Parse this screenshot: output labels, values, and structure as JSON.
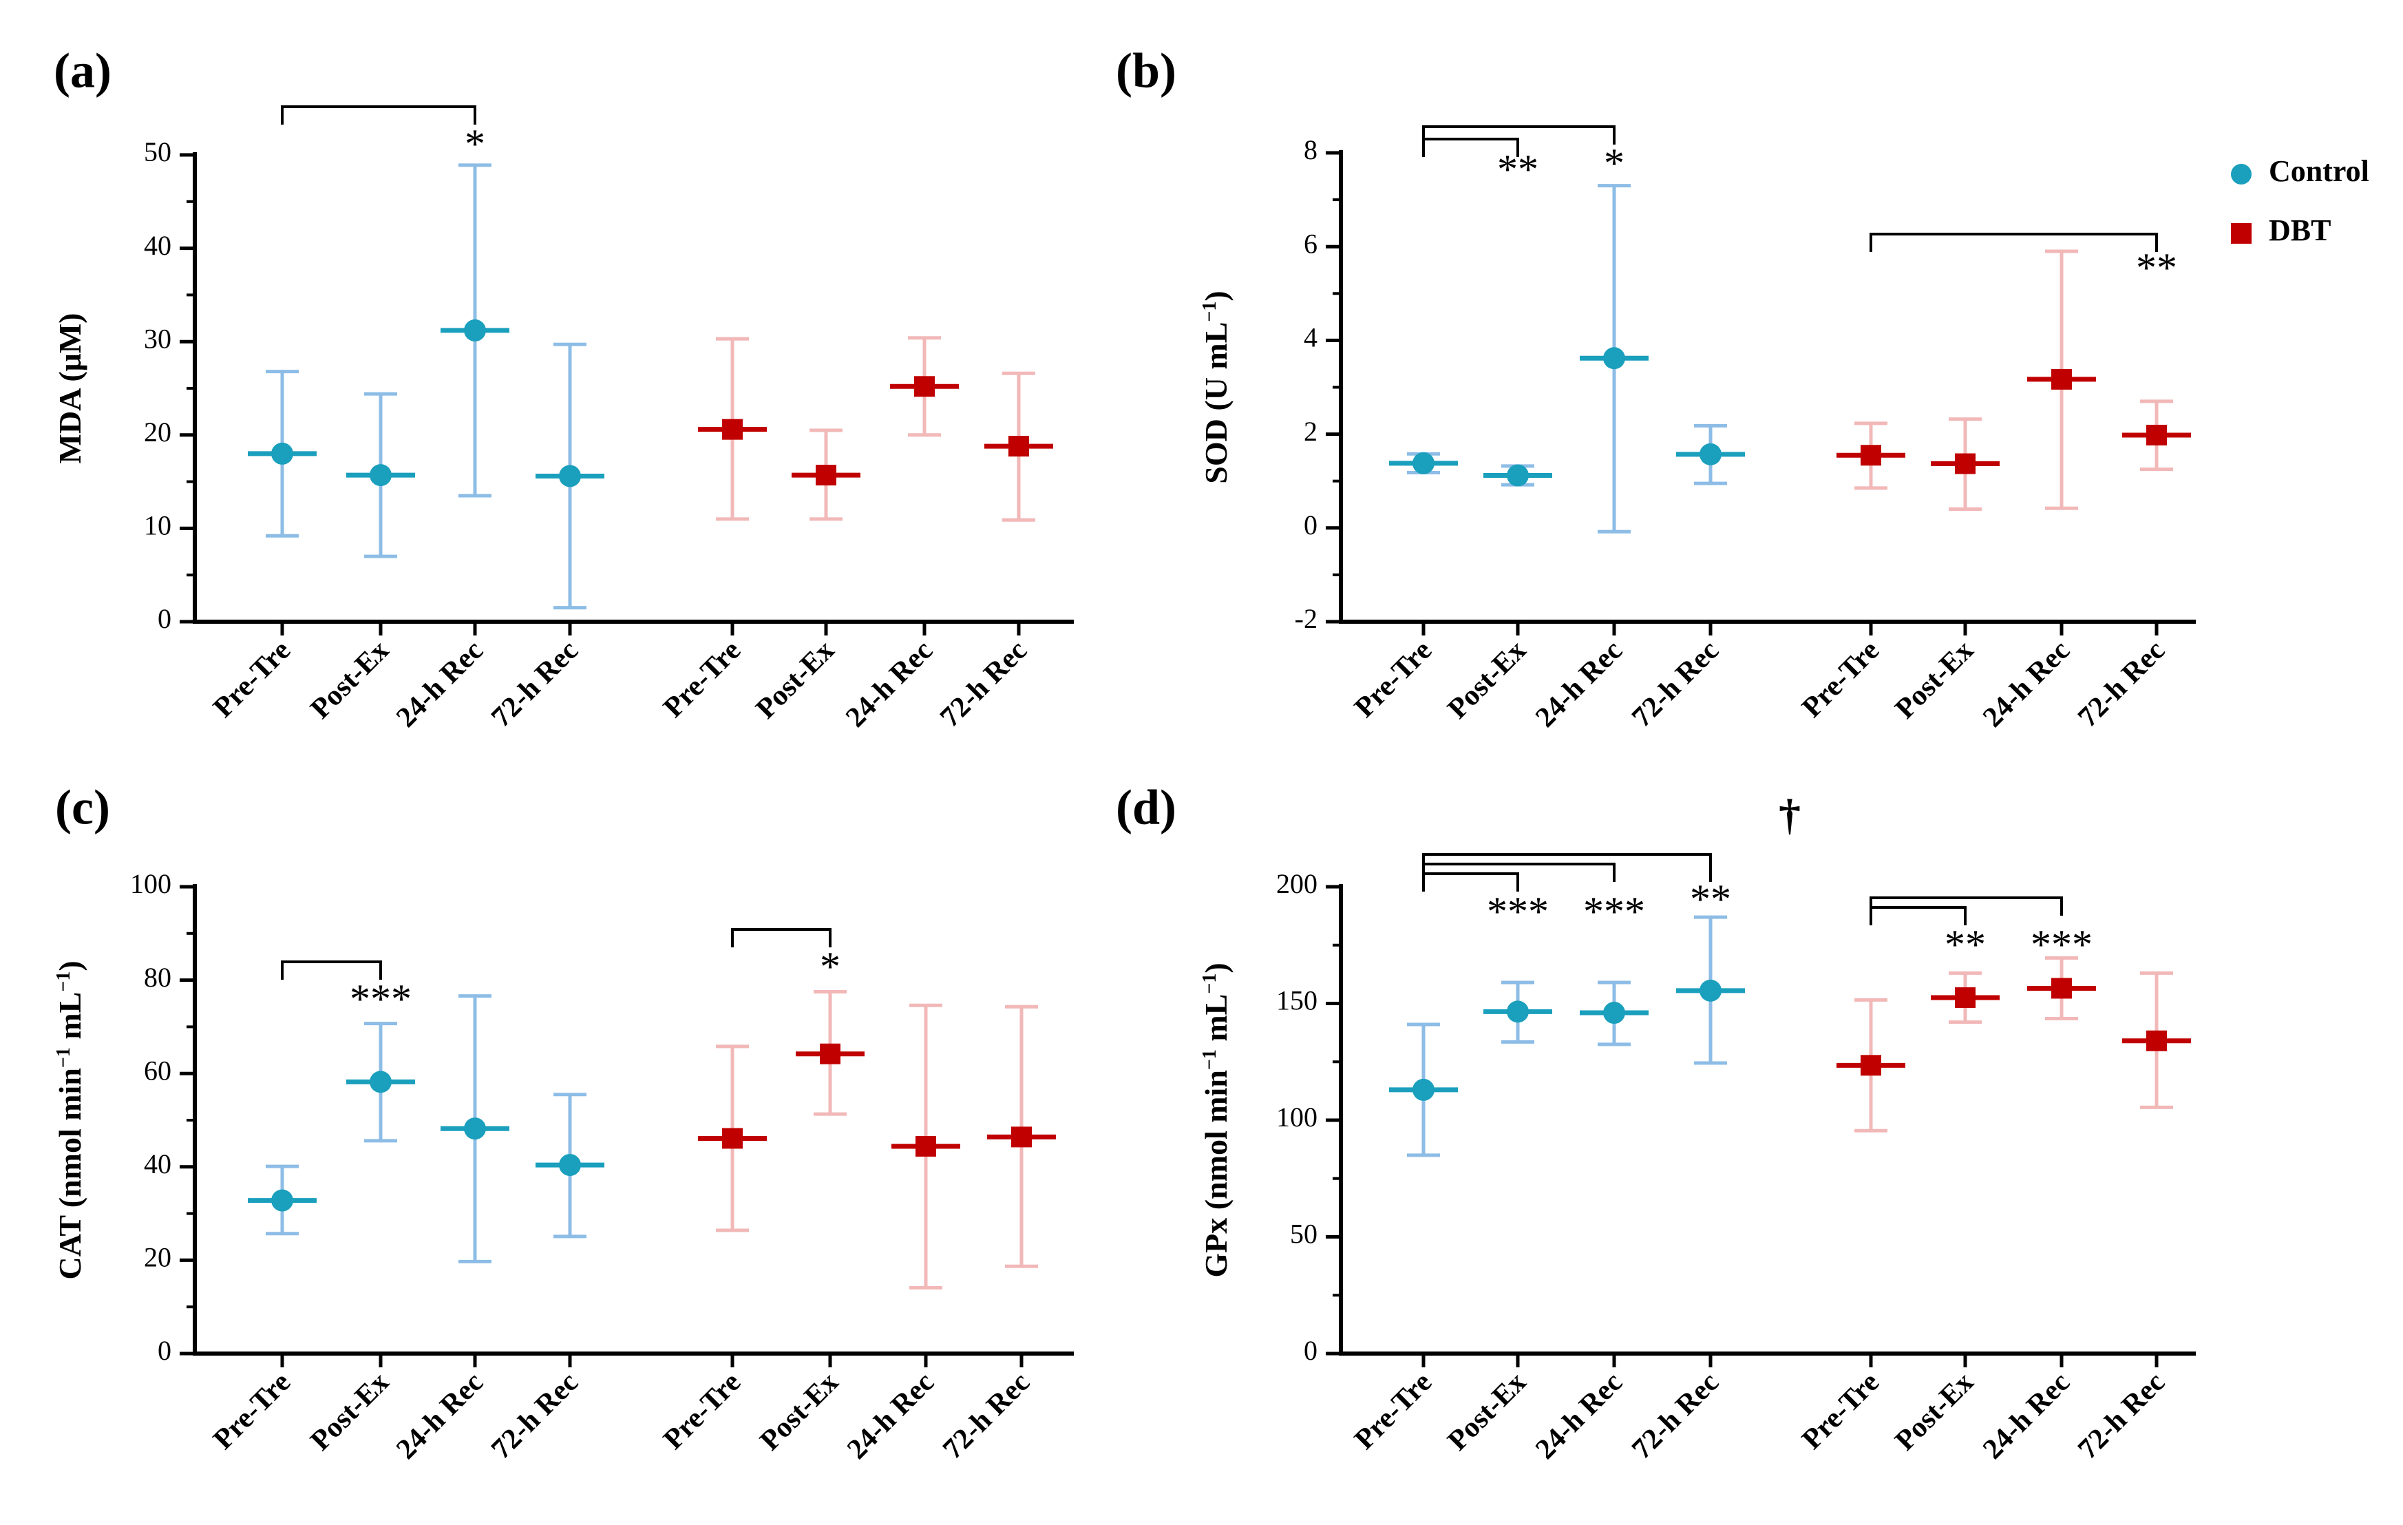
{
  "chart_data": [
    {
      "panel_label": "(a)",
      "type": "scatter",
      "ylabel_main": "MDA (",
      "ylabel_unit": "μM)",
      "ylim": [
        0,
        50
      ],
      "yticks": [
        "0",
        "10",
        "20",
        "30",
        "40",
        "50"
      ],
      "categories": [
        "Pre-Tre",
        "Post-Ex",
        "24-h Rec",
        "72-h Rec",
        "Pre-Tre",
        "Post-Ex",
        "24-h Rec",
        "72-h Rec"
      ],
      "series": [
        {
          "name": "Control",
          "mean": [
            18.0,
            15.7,
            31.2,
            15.6
          ],
          "lower": [
            9.2,
            7.0,
            13.5,
            1.5
          ],
          "upper": [
            26.8,
            24.4,
            48.9,
            29.7
          ]
        },
        {
          "name": "DBT",
          "mean": [
            20.6,
            15.7,
            25.2,
            18.8
          ],
          "lower": [
            11.0,
            11.0,
            20.0,
            10.9
          ],
          "upper": [
            30.3,
            20.5,
            30.4,
            26.6
          ]
        }
      ],
      "significance": [
        {
          "text": "*",
          "group": 0,
          "from": 0,
          "to": 2,
          "level": 0
        }
      ],
      "legend": false
    },
    {
      "panel_label": "(b)",
      "type": "scatter",
      "ylabel_main": "SOD (U mL",
      "ylabel_sup": "−1",
      "ylabel_end": ")",
      "ylim": [
        -2,
        8
      ],
      "yticks": [
        "-2",
        "0",
        "2",
        "4",
        "6",
        "8"
      ],
      "categories": [
        "Pre-Tre",
        "Post-Ex",
        "24-h Rec",
        "72-h Rec",
        "Pre-Tre",
        "Post-Ex",
        "24-h Rec",
        "72-h Rec"
      ],
      "series": [
        {
          "name": "Control",
          "mean": [
            1.38,
            1.12,
            3.62,
            1.57
          ],
          "lower": [
            1.18,
            0.92,
            -0.08,
            0.95
          ],
          "upper": [
            1.58,
            1.32,
            7.3,
            2.18
          ]
        },
        {
          "name": "DBT",
          "mean": [
            1.55,
            1.37,
            3.17,
            1.98
          ],
          "lower": [
            0.85,
            0.4,
            0.42,
            1.25
          ],
          "upper": [
            2.23,
            2.32,
            5.9,
            2.7
          ]
        }
      ],
      "significance": [
        {
          "text": "**",
          "group": 0,
          "from": 0,
          "to": 1,
          "level": 0
        },
        {
          "text": "*",
          "group": 0,
          "from": 0,
          "to": 2,
          "level": 1
        },
        {
          "text": "**",
          "group": 1,
          "from": 0,
          "to": 3,
          "level": 0
        }
      ],
      "legend": true
    },
    {
      "panel_label": "(c)",
      "type": "scatter",
      "ylabel_main": "CAT (nmol min",
      "ylabel_sup": "−1",
      "ylabel_mid": " mL",
      "ylabel_sup2": "−1",
      "ylabel_end": ")",
      "ylim": [
        0,
        100
      ],
      "yticks": [
        "0",
        "20",
        "40",
        "60",
        "80",
        "100"
      ],
      "categories": [
        "Pre-Tre",
        "Post-Ex",
        "24-h Rec",
        "72-h Rec",
        "Pre-Tre",
        "Post-Ex",
        "24-h Rec",
        "72-h Rec"
      ],
      "series": [
        {
          "name": "Control",
          "mean": [
            32.8,
            58.2,
            48.2,
            40.4
          ],
          "lower": [
            25.7,
            45.6,
            19.7,
            25.1
          ],
          "upper": [
            40.1,
            70.7,
            76.6,
            55.5
          ]
        },
        {
          "name": "DBT",
          "mean": [
            46.1,
            64.2,
            44.4,
            46.4
          ],
          "lower": [
            26.4,
            51.3,
            14.1,
            18.7
          ],
          "upper": [
            65.8,
            77.5,
            74.6,
            74.3
          ]
        }
      ],
      "significance": [
        {
          "text": "***",
          "group": 0,
          "from": 0,
          "to": 1,
          "level": 0
        },
        {
          "text": "*",
          "group": 1,
          "from": 0,
          "to": 1,
          "level": 0
        }
      ],
      "legend": false
    },
    {
      "panel_label": "(d)",
      "type": "scatter",
      "ylabel_main": "GPx (nmol min",
      "ylabel_sup": "−1",
      "ylabel_mid": " mL",
      "ylabel_sup2": "−1",
      "ylabel_end": ")",
      "ylim": [
        0,
        200
      ],
      "yticks": [
        "0",
        "50",
        "100",
        "150",
        "200"
      ],
      "categories": [
        "Pre-Tre",
        "Post-Ex",
        "24-h Rec",
        "72-h Rec",
        "Pre-Tre",
        "Post-Ex",
        "24-h Rec",
        "72-h Rec"
      ],
      "series": [
        {
          "name": "Control",
          "mean": [
            113,
            146.5,
            146,
            155.5
          ],
          "lower": [
            85,
            133.5,
            132.5,
            124.5
          ],
          "upper": [
            141,
            159,
            159,
            187
          ]
        },
        {
          "name": "DBT",
          "mean": [
            123.5,
            152.5,
            156.5,
            134
          ],
          "lower": [
            95.5,
            142,
            143.5,
            105.5
          ],
          "upper": [
            151.5,
            163,
            169.5,
            163
          ]
        }
      ],
      "significance": [
        {
          "text": "***",
          "group": 0,
          "from": 0,
          "to": 1,
          "level": 0
        },
        {
          "text": "***",
          "group": 0,
          "from": 0,
          "to": 2,
          "level": 1
        },
        {
          "text": "**",
          "group": 0,
          "from": 0,
          "to": 3,
          "level": 2
        },
        {
          "text": "**",
          "group": 1,
          "from": 0,
          "to": 1,
          "level": 0
        },
        {
          "text": "***",
          "group": 1,
          "from": 0,
          "to": 2,
          "level": 1
        }
      ],
      "dagger": "†",
      "legend": false
    }
  ],
  "legend": {
    "items": [
      {
        "label": "Control",
        "marker": "circle"
      },
      {
        "label": "DBT",
        "marker": "square"
      }
    ]
  },
  "colors": {
    "control_mark": "#1a9fbd",
    "control_err": "#8dbde6",
    "dbt_mark": "#c00000",
    "dbt_err": "#f2b8b8",
    "axis": "#000000"
  }
}
